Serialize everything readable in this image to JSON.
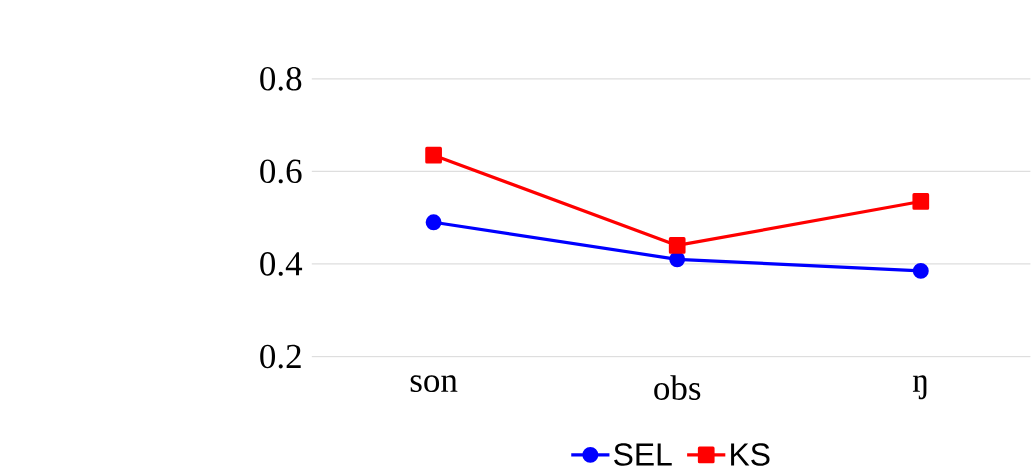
{
  "chart_data": {
    "type": "line",
    "categories": [
      "son",
      "obs",
      "ŋ"
    ],
    "series": [
      {
        "name": "SEL",
        "color": "#0000ff",
        "values": [
          0.49,
          0.41,
          0.385
        ],
        "marker": "circle"
      },
      {
        "name": "KS",
        "color": "#ff0000",
        "values": [
          0.635,
          0.44,
          0.535
        ],
        "marker": "square"
      }
    ],
    "ylim": [
      0.2,
      0.8
    ],
    "yticks": [
      0.2,
      0.4,
      0.6,
      0.8
    ],
    "grid": "y",
    "legend": "bottom"
  }
}
